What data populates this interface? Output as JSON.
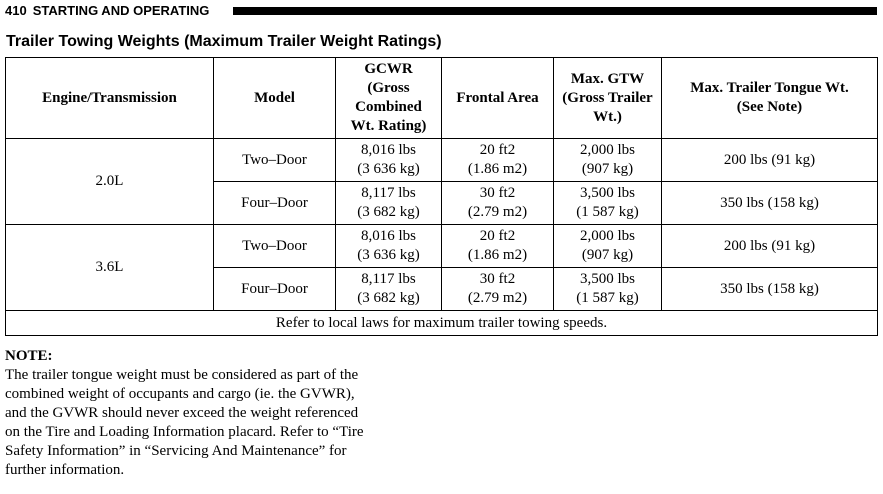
{
  "header": {
    "page_number": "410",
    "section": "STARTING AND OPERATING"
  },
  "title": "Trailer Towing Weights (Maximum Trailer Weight Ratings)",
  "table": {
    "columns": [
      [
        "Engine/Transmission"
      ],
      [
        "Model"
      ],
      [
        "GCWR",
        "(Gross",
        "Combined",
        "Wt. Rating)"
      ],
      [
        "Frontal Area"
      ],
      [
        "Max. GTW",
        "(Gross Trailer",
        "Wt.)"
      ],
      [
        "Max. Trailer Tongue Wt.",
        "(See Note)"
      ]
    ],
    "groups": [
      {
        "engine": "2.0L",
        "rows": [
          {
            "model": "Two–Door",
            "gcwr": [
              "8,016 lbs",
              "(3 636 kg)"
            ],
            "frontal_area": [
              "20 ft2",
              "(1.86 m2)"
            ],
            "gtw": [
              "2,000 lbs",
              "(907 kg)"
            ],
            "tongue": "200 lbs (91 kg)"
          },
          {
            "model": "Four–Door",
            "gcwr": [
              "8,117 lbs",
              "(3 682 kg)"
            ],
            "frontal_area": [
              "30 ft2",
              "(2.79 m2)"
            ],
            "gtw": [
              "3,500 lbs",
              "(1 587 kg)"
            ],
            "tongue": "350 lbs (158 kg)"
          }
        ]
      },
      {
        "engine": "3.6L",
        "rows": [
          {
            "model": "Two–Door",
            "gcwr": [
              "8,016 lbs",
              "(3 636 kg)"
            ],
            "frontal_area": [
              "20 ft2",
              "(1.86 m2)"
            ],
            "gtw": [
              "2,000 lbs",
              "(907 kg)"
            ],
            "tongue": "200 lbs (91 kg)"
          },
          {
            "model": "Four–Door",
            "gcwr": [
              "8,117 lbs",
              "(3 682 kg)"
            ],
            "frontal_area": [
              "30 ft2",
              "(2.79 m2)"
            ],
            "gtw": [
              "3,500 lbs",
              "(1 587 kg)"
            ],
            "tongue": "350 lbs (158 kg)"
          }
        ]
      }
    ],
    "footer": "Refer to local laws for maximum trailer towing speeds."
  },
  "note": {
    "title": "NOTE:",
    "lines": [
      "The trailer tongue weight must be considered as part of the",
      "combined weight of occupants and cargo (ie. the GVWR),",
      "and the GVWR should never exceed the weight referenced",
      "on the Tire and Loading Information placard. Refer to “Tire",
      "Safety Information” in “Servicing And Maintenance” for",
      "further information."
    ]
  }
}
